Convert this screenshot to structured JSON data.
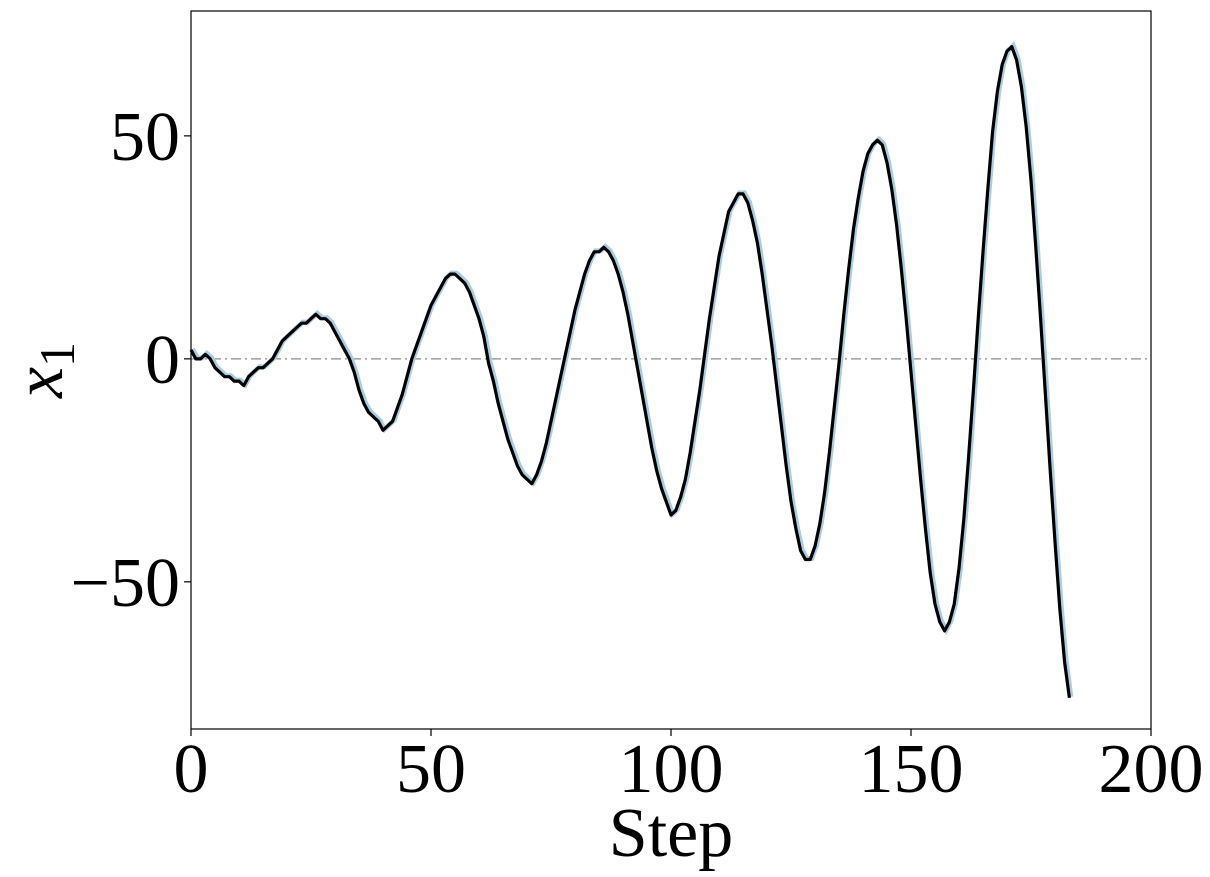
{
  "chart_data": {
    "type": "line",
    "xlabel": "Step",
    "ylabel_base": "x",
    "ylabel_sub": "1",
    "xlim": [
      0,
      200
    ],
    "ylim": [
      -83,
      78
    ],
    "xticks": [
      0,
      50,
      100,
      150,
      200
    ],
    "xtick_labels": [
      "0",
      "50",
      "100",
      "150",
      "200"
    ],
    "yticks": [
      -50,
      0,
      50
    ],
    "ytick_labels": [
      "−50",
      "0",
      "50"
    ],
    "grid": false,
    "reference_line": {
      "y": 0,
      "style": "dash-dot",
      "color": "#888888"
    },
    "series": [
      {
        "color": "#000000",
        "shadow_color": "#a9cde3",
        "points": [
          [
            0,
            2
          ],
          [
            1,
            0
          ],
          [
            2,
            0
          ],
          [
            3,
            1
          ],
          [
            4,
            0
          ],
          [
            5,
            -2
          ],
          [
            6,
            -3
          ],
          [
            7,
            -4
          ],
          [
            8,
            -4
          ],
          [
            9,
            -5
          ],
          [
            10,
            -5
          ],
          [
            11,
            -6
          ],
          [
            12,
            -4
          ],
          [
            13,
            -3
          ],
          [
            14,
            -2
          ],
          [
            15,
            -2
          ],
          [
            16,
            -1
          ],
          [
            17,
            0
          ],
          [
            18,
            2
          ],
          [
            19,
            4
          ],
          [
            20,
            5
          ],
          [
            21,
            6
          ],
          [
            22,
            7
          ],
          [
            23,
            8
          ],
          [
            24,
            8
          ],
          [
            25,
            9
          ],
          [
            26,
            10
          ],
          [
            27,
            9
          ],
          [
            28,
            9
          ],
          [
            29,
            8
          ],
          [
            30,
            6
          ],
          [
            31,
            4
          ],
          [
            32,
            2
          ],
          [
            33,
            0
          ],
          [
            34,
            -3
          ],
          [
            35,
            -7
          ],
          [
            36,
            -10
          ],
          [
            37,
            -12
          ],
          [
            38,
            -13
          ],
          [
            39,
            -14
          ],
          [
            40,
            -16
          ],
          [
            41,
            -15
          ],
          [
            42,
            -14
          ],
          [
            43,
            -11
          ],
          [
            44,
            -8
          ],
          [
            45,
            -4
          ],
          [
            46,
            0
          ],
          [
            47,
            3
          ],
          [
            48,
            6
          ],
          [
            49,
            9
          ],
          [
            50,
            12
          ],
          [
            51,
            14
          ],
          [
            52,
            16
          ],
          [
            53,
            18
          ],
          [
            54,
            19
          ],
          [
            55,
            19
          ],
          [
            56,
            18
          ],
          [
            57,
            17
          ],
          [
            58,
            15
          ],
          [
            59,
            12
          ],
          [
            60,
            9
          ],
          [
            61,
            5
          ],
          [
            62,
            -1
          ],
          [
            63,
            -5
          ],
          [
            64,
            -10
          ],
          [
            65,
            -14
          ],
          [
            66,
            -18
          ],
          [
            67,
            -21
          ],
          [
            68,
            -24
          ],
          [
            69,
            -26
          ],
          [
            70,
            -27
          ],
          [
            71,
            -28
          ],
          [
            72,
            -26
          ],
          [
            73,
            -23
          ],
          [
            74,
            -19
          ],
          [
            75,
            -14
          ],
          [
            76,
            -9
          ],
          [
            77,
            -4
          ],
          [
            78,
            1
          ],
          [
            79,
            6
          ],
          [
            80,
            11
          ],
          [
            81,
            15
          ],
          [
            82,
            19
          ],
          [
            83,
            22
          ],
          [
            84,
            24
          ],
          [
            85,
            24
          ],
          [
            86,
            25
          ],
          [
            87,
            24
          ],
          [
            88,
            22
          ],
          [
            89,
            19
          ],
          [
            90,
            15
          ],
          [
            91,
            10
          ],
          [
            92,
            4
          ],
          [
            93,
            -2
          ],
          [
            94,
            -8
          ],
          [
            95,
            -14
          ],
          [
            96,
            -20
          ],
          [
            97,
            -25
          ],
          [
            98,
            -29
          ],
          [
            99,
            -32
          ],
          [
            100,
            -35
          ],
          [
            101,
            -34
          ],
          [
            102,
            -31
          ],
          [
            103,
            -27
          ],
          [
            104,
            -21
          ],
          [
            105,
            -14
          ],
          [
            106,
            -7
          ],
          [
            107,
            1
          ],
          [
            108,
            9
          ],
          [
            109,
            16
          ],
          [
            110,
            23
          ],
          [
            111,
            28
          ],
          [
            112,
            33
          ],
          [
            113,
            35
          ],
          [
            114,
            37
          ],
          [
            115,
            37
          ],
          [
            116,
            35
          ],
          [
            117,
            31
          ],
          [
            118,
            26
          ],
          [
            119,
            19
          ],
          [
            120,
            11
          ],
          [
            121,
            3
          ],
          [
            122,
            -6
          ],
          [
            123,
            -15
          ],
          [
            124,
            -24
          ],
          [
            125,
            -32
          ],
          [
            126,
            -38
          ],
          [
            127,
            -43
          ],
          [
            128,
            -45
          ],
          [
            129,
            -45
          ],
          [
            130,
            -42
          ],
          [
            131,
            -37
          ],
          [
            132,
            -30
          ],
          [
            133,
            -21
          ],
          [
            134,
            -11
          ],
          [
            135,
            -1
          ],
          [
            136,
            10
          ],
          [
            137,
            20
          ],
          [
            138,
            29
          ],
          [
            139,
            36
          ],
          [
            140,
            42
          ],
          [
            141,
            46
          ],
          [
            142,
            48
          ],
          [
            143,
            49
          ],
          [
            144,
            48
          ],
          [
            145,
            44
          ],
          [
            146,
            38
          ],
          [
            147,
            30
          ],
          [
            148,
            20
          ],
          [
            149,
            9
          ],
          [
            150,
            -3
          ],
          [
            151,
            -15
          ],
          [
            152,
            -27
          ],
          [
            153,
            -38
          ],
          [
            154,
            -48
          ],
          [
            155,
            -55
          ],
          [
            156,
            -59
          ],
          [
            157,
            -61
          ],
          [
            158,
            -59
          ],
          [
            159,
            -55
          ],
          [
            160,
            -47
          ],
          [
            161,
            -36
          ],
          [
            162,
            -22
          ],
          [
            163,
            -7
          ],
          [
            164,
            9
          ],
          [
            165,
            24
          ],
          [
            166,
            38
          ],
          [
            167,
            51
          ],
          [
            168,
            60
          ],
          [
            169,
            66
          ],
          [
            170,
            69
          ],
          [
            171,
            70
          ],
          [
            172,
            67
          ],
          [
            173,
            61
          ],
          [
            174,
            52
          ],
          [
            175,
            40
          ],
          [
            176,
            25
          ],
          [
            177,
            9
          ],
          [
            178,
            -8
          ],
          [
            179,
            -25
          ],
          [
            180,
            -41
          ],
          [
            181,
            -56
          ],
          [
            182,
            -68
          ],
          [
            183,
            -76
          ]
        ]
      }
    ]
  }
}
